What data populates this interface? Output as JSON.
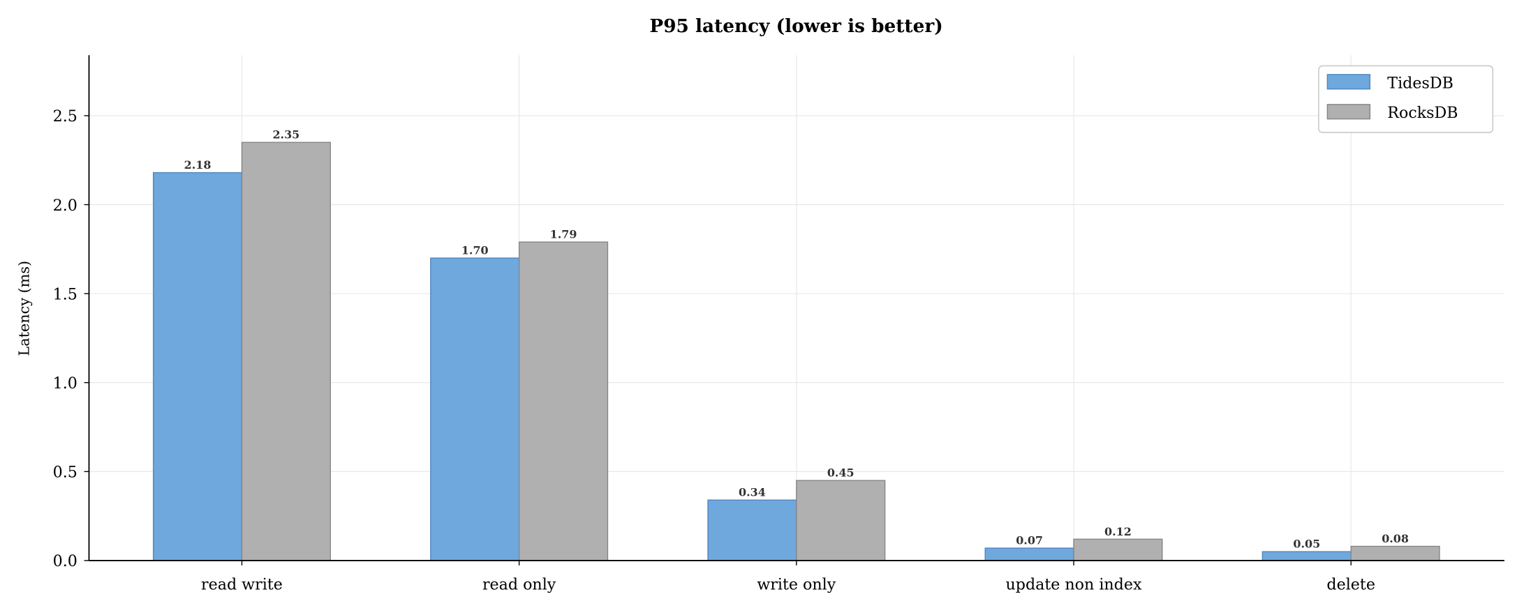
{
  "chart_data": {
    "type": "bar",
    "title": "P95 latency  (lower is better)",
    "xlabel": "",
    "ylabel": "Latency (ms)",
    "categories": [
      "read write",
      "read only",
      "write only",
      "update non index",
      "delete"
    ],
    "series": [
      {
        "name": "TidesDB",
        "values": [
          2.18,
          1.7,
          0.34,
          0.07,
          0.05
        ],
        "labels": [
          "2.18",
          "1.70",
          "0.34",
          "0.07",
          "0.05"
        ],
        "color": "#6fa8dc",
        "edge": "#4f86c0"
      },
      {
        "name": "RocksDB",
        "values": [
          2.35,
          1.79,
          0.45,
          0.12,
          0.08
        ],
        "labels": [
          "2.35",
          "1.79",
          "0.45",
          "0.12",
          "0.08"
        ],
        "color": "#b0b0b0",
        "edge": "#858585"
      }
    ],
    "ylim": [
      0,
      2.84
    ],
    "yticks": [
      "0.0",
      "0.5",
      "1.0",
      "1.5",
      "2.0",
      "2.5"
    ],
    "grid": true,
    "legend": "top-right"
  }
}
